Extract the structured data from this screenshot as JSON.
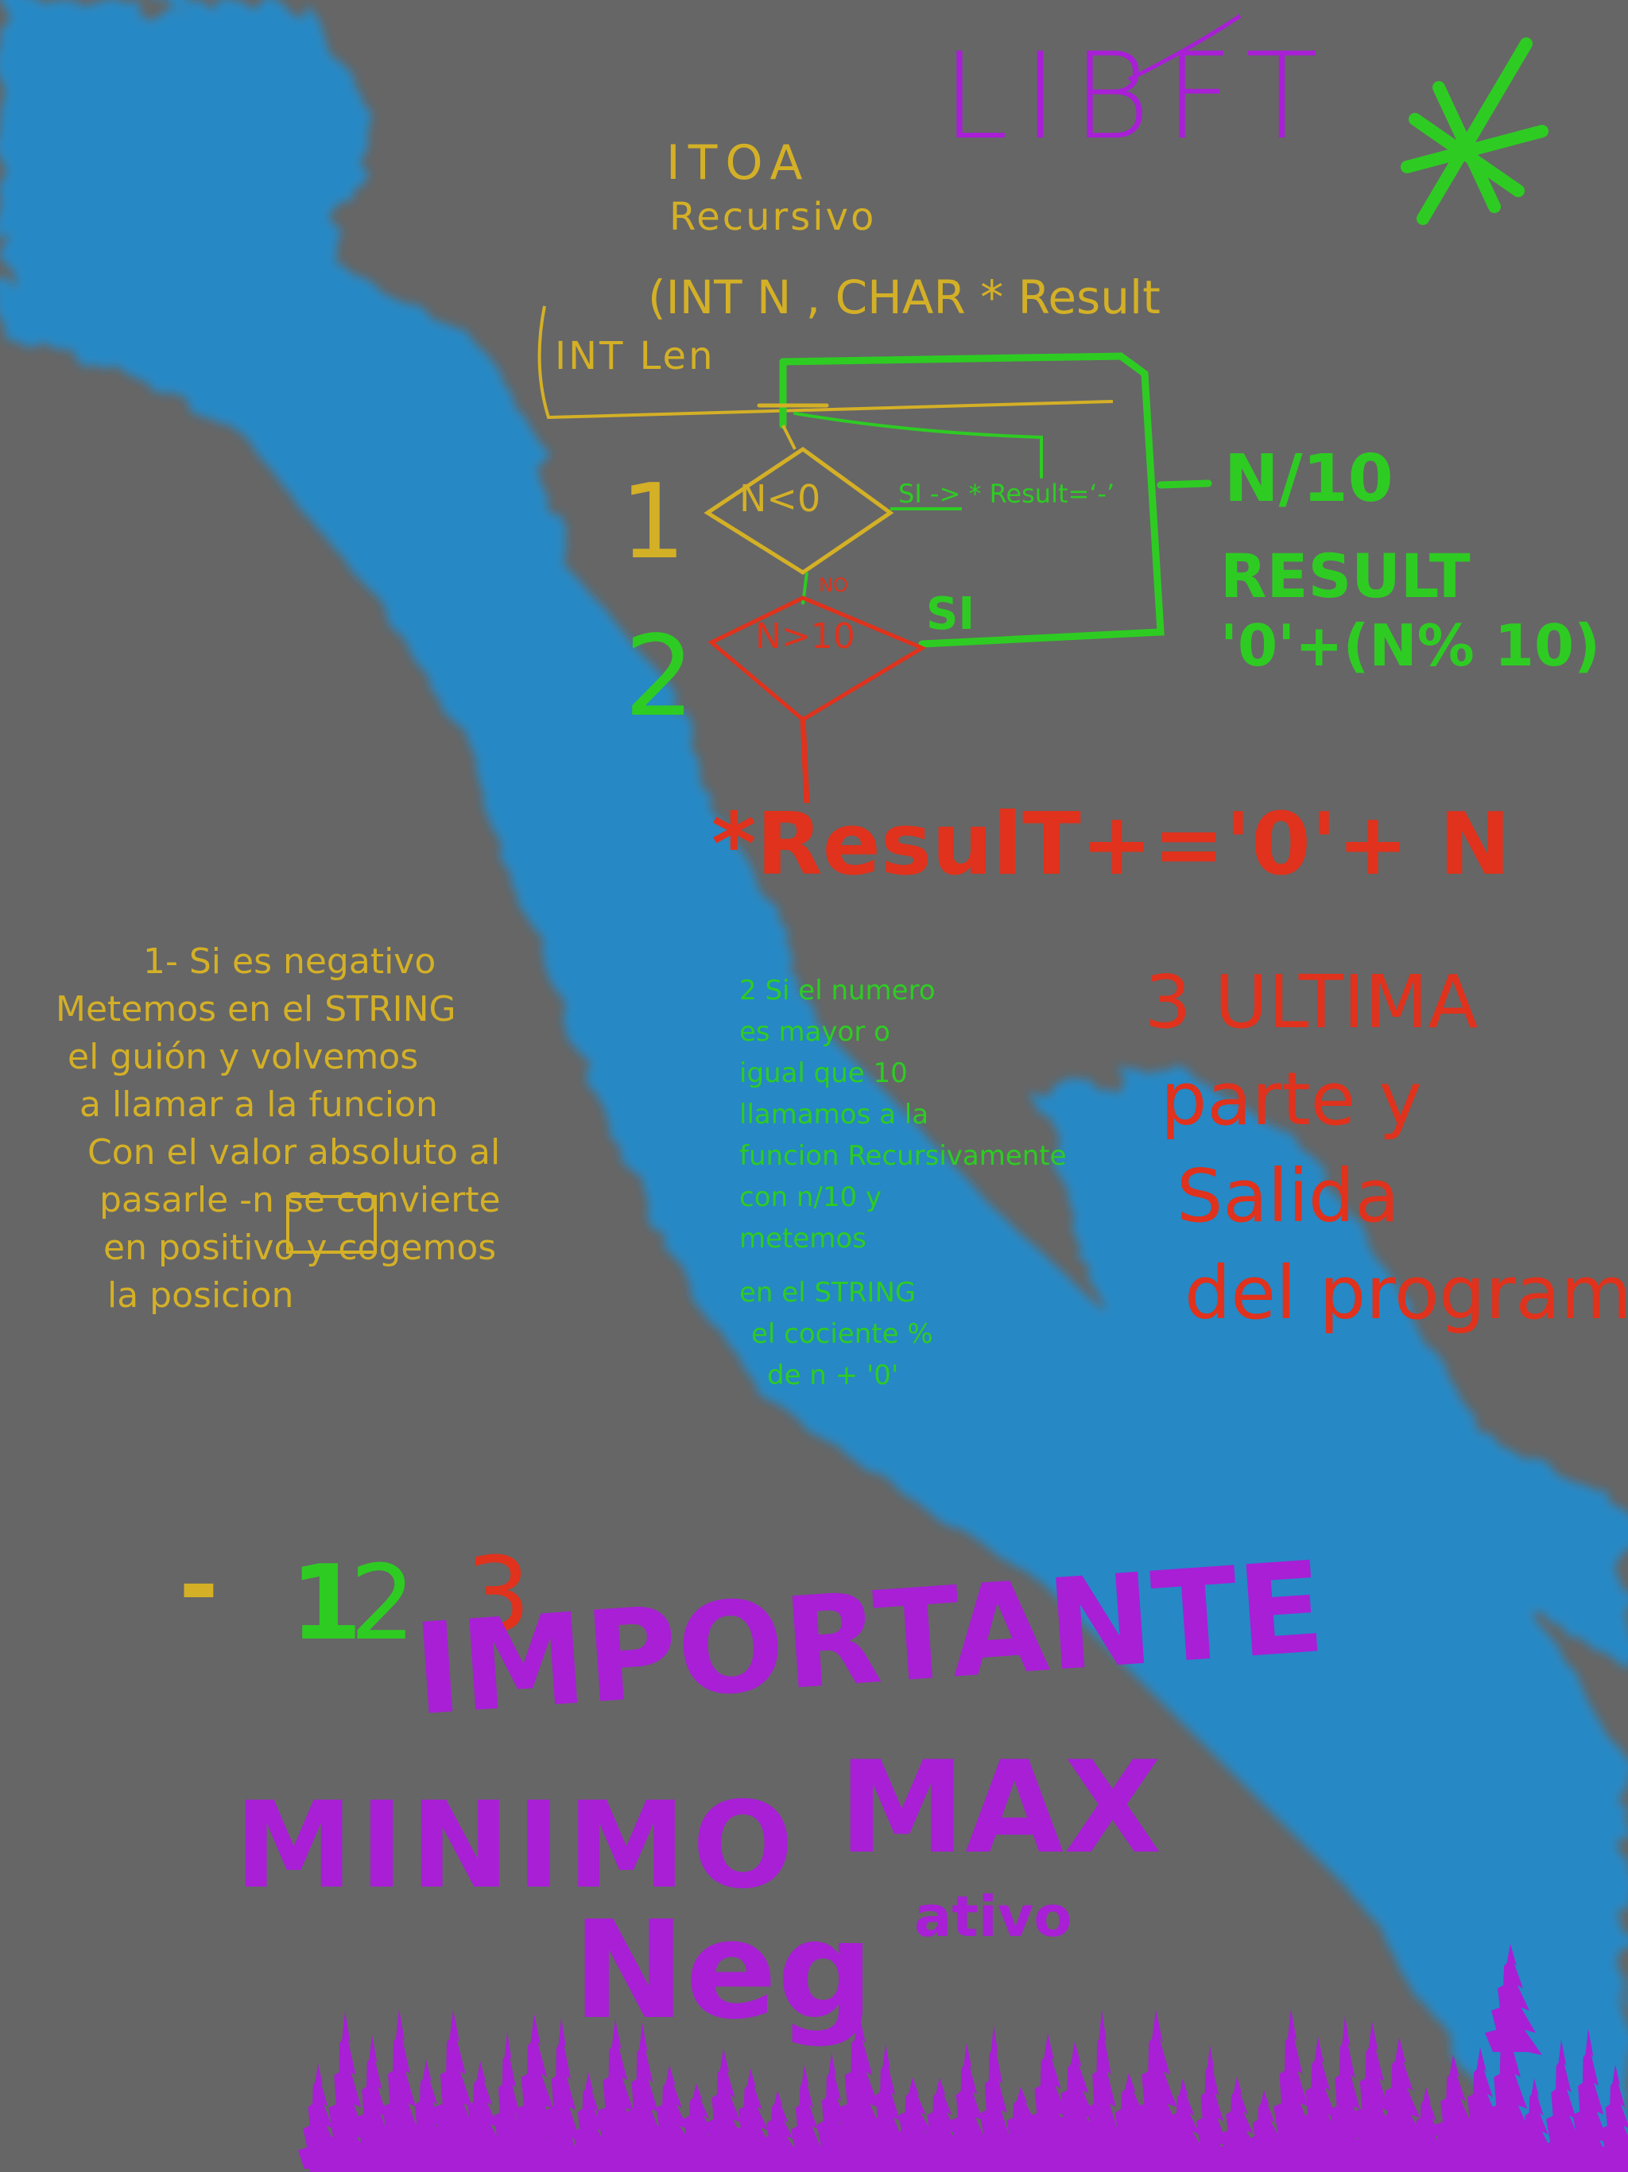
{
  "colors": {
    "background": "#666666",
    "brush_blue": "#1a8fd6",
    "yellow": "#d4b026",
    "green": "#2ecc23",
    "red": "#e0321c",
    "purple": "#a81fd6"
  },
  "header": {
    "title": "LIBFT",
    "star_icon": "green-asterisk-icon"
  },
  "function": {
    "name": "ITOA",
    "subtitle": "Recursivo",
    "params": "(INT N , CHAR * Result",
    "extra": "INT Len"
  },
  "flowchart": {
    "step1_number": "1",
    "step2_number": "2",
    "decision1": "N<0",
    "decision1_yes": "SI -> * Result=‘-’",
    "decision1_no": "NO",
    "decision2": "N>10",
    "decision2_yes": "SI",
    "recursion_line1": "N/10",
    "recursion_line2": "RESULT",
    "recursion_line3": "'0'+(N% 10)",
    "final_statement": "*ResulT+='0'+ N"
  },
  "notes": {
    "note1": [
      "1- Si es negativo",
      "Metemos en el STRING",
      "el guión y volvemos",
      "a llamar a la funcion",
      "Con el valor absoluto al",
      "pasarle -n se convierte",
      "en positivo y cogemos",
      "la posicion"
    ],
    "note2": [
      "2 Si el numero",
      "es mayor o",
      "igual que 10",
      "llamamos a la",
      "funcion Recursivamente",
      "con n/10 y",
      "metemos",
      "en el STRING",
      "el cociente %",
      "de n + '0'"
    ],
    "note3": [
      "3 ULTIMA",
      "parte y",
      "Salida",
      "del programa"
    ]
  },
  "example": {
    "minus": "-",
    "digit1": "1",
    "digit2": "2",
    "digit3": "3"
  },
  "warning": {
    "line1": "IMPORTANTE",
    "line2_word1": "MINIMO",
    "line2_word2": "MAX",
    "line3_main": "Neg",
    "line3_small": "ativo"
  },
  "decorations": {
    "trees_icon": "purple-pine-trees-icon"
  }
}
